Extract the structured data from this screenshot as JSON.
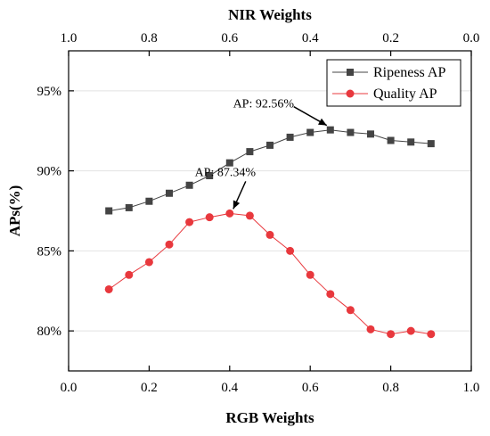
{
  "chart_data": {
    "type": "line",
    "xlabel": "RGB Weights",
    "x2label": "NIR Weights",
    "ylabel": "APs(%)",
    "xlim": [
      0.0,
      1.0
    ],
    "ylim": [
      77.5,
      97.5
    ],
    "x_ticks": [
      "0.0",
      "0.2",
      "0.4",
      "0.6",
      "0.8",
      "1.0"
    ],
    "x2_ticks": [
      "1.0",
      "0.8",
      "0.6",
      "0.4",
      "0.2",
      "0.0"
    ],
    "y_ticks": [
      "80%",
      "85%",
      "90%",
      "95%"
    ],
    "grid": true,
    "legend_position": "top-right",
    "x": [
      0.1,
      0.15,
      0.2,
      0.25,
      0.3,
      0.35,
      0.4,
      0.45,
      0.5,
      0.55,
      0.6,
      0.65,
      0.7,
      0.75,
      0.8,
      0.85,
      0.9
    ],
    "series": [
      {
        "name": "Ripeness AP",
        "color": "#444444",
        "marker": "square",
        "values": [
          87.5,
          87.7,
          88.1,
          88.6,
          89.1,
          89.7,
          90.5,
          91.2,
          91.6,
          92.1,
          92.4,
          92.56,
          92.4,
          92.3,
          91.9,
          91.8,
          91.7
        ]
      },
      {
        "name": "Quality AP",
        "color": "#e8383d",
        "marker": "circle",
        "values": [
          82.6,
          83.5,
          84.3,
          85.4,
          86.8,
          87.1,
          87.34,
          87.2,
          86.0,
          85.0,
          83.5,
          82.3,
          81.3,
          80.1,
          79.8,
          80.0,
          79.8
        ]
      }
    ],
    "annotations": [
      {
        "text": "AP: 92.56%",
        "x": 0.65,
        "y": 92.56
      },
      {
        "text": "AP: 87.34%",
        "x": 0.4,
        "y": 87.34
      }
    ]
  }
}
